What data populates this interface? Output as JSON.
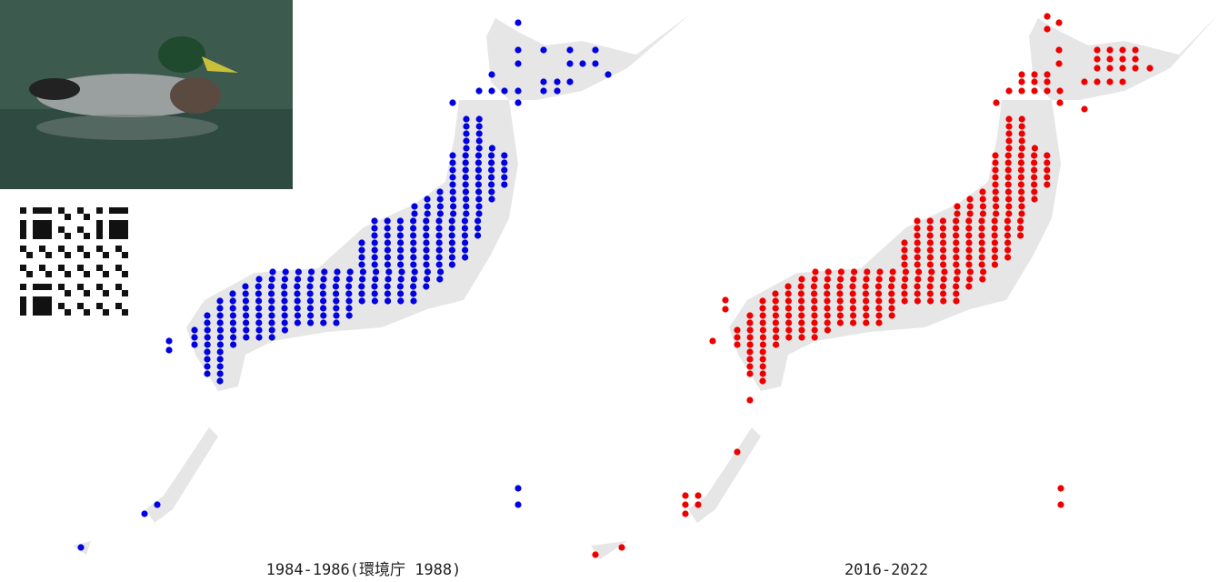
{
  "maps": [
    {
      "caption": "1984-1986(環境庁 1988)"
    },
    {
      "caption": "2016-2022"
    }
  ]
}
